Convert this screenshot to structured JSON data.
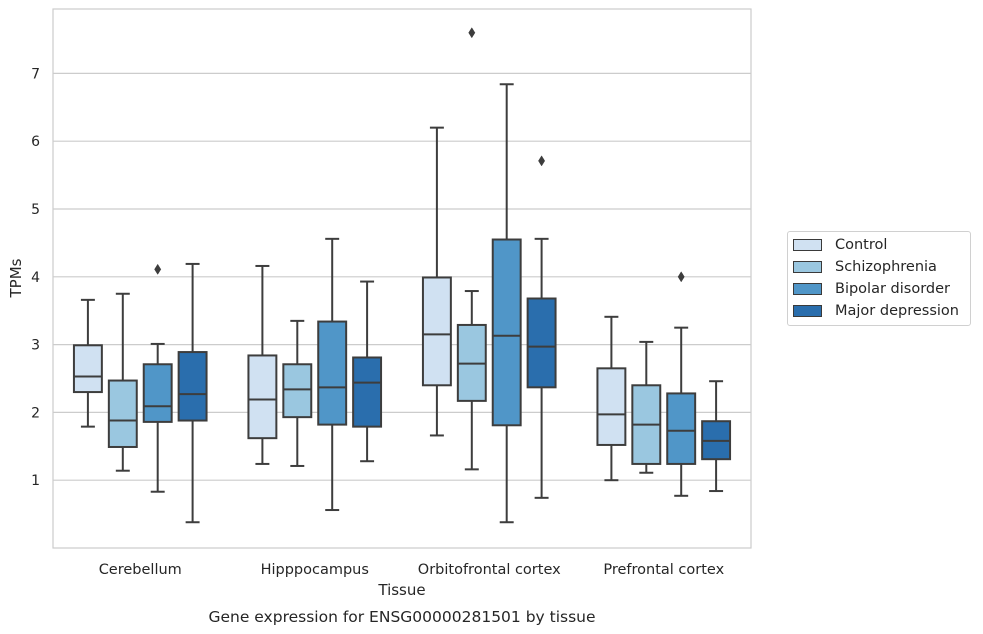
{
  "chart_data": {
    "type": "box",
    "title": "",
    "caption": "Gene expression for ENSG00000281501 by tissue",
    "xlabel": "Tissue",
    "ylabel": "TPMs",
    "ylim": [
      0,
      7.95
    ],
    "yticks": [
      1,
      2,
      3,
      4,
      5,
      6,
      7
    ],
    "categories": [
      "Cerebellum",
      "Hipppocampus",
      "Orbitofrontal cortex",
      "Prefrontal cortex"
    ],
    "legend_position": "right",
    "grid": true,
    "series": [
      {
        "name": "Control",
        "color": "#d0e1f2",
        "boxes": [
          {
            "whislo": 1.79,
            "q1": 2.3,
            "med": 2.53,
            "q3": 2.99,
            "whishi": 3.66,
            "fliers": []
          },
          {
            "whislo": 1.24,
            "q1": 1.62,
            "med": 2.19,
            "q3": 2.84,
            "whishi": 4.16,
            "fliers": []
          },
          {
            "whislo": 1.66,
            "q1": 2.4,
            "med": 3.15,
            "q3": 3.99,
            "whishi": 6.2,
            "fliers": []
          },
          {
            "whislo": 1.0,
            "q1": 1.52,
            "med": 1.97,
            "q3": 2.65,
            "whishi": 3.41,
            "fliers": []
          }
        ]
      },
      {
        "name": "Schizophrenia",
        "color": "#9ac7e0",
        "boxes": [
          {
            "whislo": 1.14,
            "q1": 1.49,
            "med": 1.88,
            "q3": 2.47,
            "whishi": 3.75,
            "fliers": []
          },
          {
            "whislo": 1.21,
            "q1": 1.93,
            "med": 2.34,
            "q3": 2.71,
            "whishi": 3.35,
            "fliers": []
          },
          {
            "whislo": 1.16,
            "q1": 2.17,
            "med": 2.72,
            "q3": 3.29,
            "whishi": 3.79,
            "fliers": [
              7.6
            ]
          },
          {
            "whislo": 1.11,
            "q1": 1.24,
            "med": 1.82,
            "q3": 2.4,
            "whishi": 3.04,
            "fliers": []
          }
        ]
      },
      {
        "name": "Bipolar disorder",
        "color": "#5096c8",
        "boxes": [
          {
            "whislo": 0.83,
            "q1": 1.86,
            "med": 2.09,
            "q3": 2.71,
            "whishi": 3.01,
            "fliers": [
              4.11
            ]
          },
          {
            "whislo": 0.56,
            "q1": 1.82,
            "med": 2.37,
            "q3": 3.34,
            "whishi": 4.56,
            "fliers": []
          },
          {
            "whislo": 0.38,
            "q1": 1.81,
            "med": 3.13,
            "q3": 4.55,
            "whishi": 6.84,
            "fliers": []
          },
          {
            "whislo": 0.77,
            "q1": 1.24,
            "med": 1.73,
            "q3": 2.28,
            "whishi": 3.25,
            "fliers": [
              4.0
            ]
          }
        ]
      },
      {
        "name": "Major depression",
        "color": "#2a6ead",
        "boxes": [
          {
            "whislo": 0.38,
            "q1": 1.88,
            "med": 2.27,
            "q3": 2.89,
            "whishi": 4.19,
            "fliers": []
          },
          {
            "whislo": 1.28,
            "q1": 1.79,
            "med": 2.44,
            "q3": 2.81,
            "whishi": 3.93,
            "fliers": []
          },
          {
            "whislo": 0.74,
            "q1": 2.37,
            "med": 2.97,
            "q3": 3.68,
            "whishi": 4.56,
            "fliers": [
              5.71
            ]
          },
          {
            "whislo": 0.84,
            "q1": 1.31,
            "med": 1.58,
            "q3": 1.87,
            "whishi": 2.46,
            "fliers": []
          }
        ]
      }
    ]
  }
}
